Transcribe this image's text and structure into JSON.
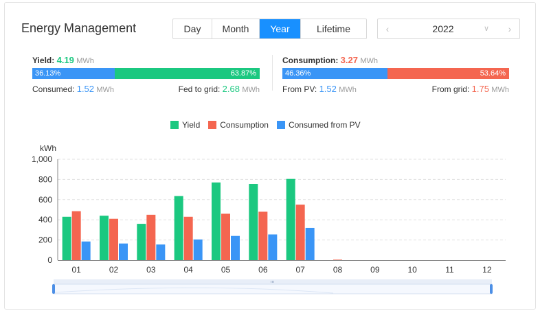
{
  "header": {
    "title": "Energy Management",
    "tabs": [
      {
        "label": "Day",
        "active": false
      },
      {
        "label": "Month",
        "active": false
      },
      {
        "label": "Year",
        "active": true
      },
      {
        "label": "Lifetime",
        "active": false
      }
    ],
    "year_picker": {
      "value": "2022",
      "prev_icon": "chevron-left-icon",
      "next_icon": "chevron-right-icon",
      "dropdown_icon": "chevron-down-icon"
    }
  },
  "yield_summary": {
    "label": "Yield:",
    "value": "4.19",
    "unit": "MWh",
    "bar_left_pct": "36.13%",
    "bar_right_pct": "63.87%",
    "bar_left_fraction": 0.3613,
    "consumed_label": "Consumed:",
    "consumed_value": "1.52",
    "consumed_unit": "MWh",
    "fed_label": "Fed to grid:",
    "fed_value": "2.68",
    "fed_unit": "MWh"
  },
  "consumption_summary": {
    "label": "Consumption:",
    "value": "3.27",
    "unit": "MWh",
    "bar_left_pct": "46.36%",
    "bar_right_pct": "53.64%",
    "bar_left_fraction": 0.4636,
    "pv_label": "From PV:",
    "pv_value": "1.52",
    "pv_unit": "MWh",
    "grid_label": "From grid:",
    "grid_value": "1.75",
    "grid_unit": "MWh"
  },
  "colors": {
    "yield": "#1bc880",
    "consumption": "#f46650",
    "consumed_pv": "#3a95f6",
    "accent": "#1890ff"
  },
  "chart_data": {
    "type": "bar",
    "ylabel": "kWh",
    "ylim": [
      0,
      1000
    ],
    "yticks": [
      "0",
      "200",
      "400",
      "600",
      "800",
      "1,000"
    ],
    "grid": true,
    "legend_position": "top-center",
    "categories": [
      "01",
      "02",
      "03",
      "04",
      "05",
      "06",
      "07",
      "08",
      "09",
      "10",
      "11",
      "12"
    ],
    "series": [
      {
        "name": "Yield",
        "values": [
          430,
          440,
          360,
          635,
          770,
          755,
          805,
          0,
          0,
          0,
          0,
          0
        ]
      },
      {
        "name": "Consumption",
        "values": [
          485,
          410,
          450,
          430,
          460,
          480,
          550,
          5,
          0,
          0,
          0,
          0
        ]
      },
      {
        "name": "Consumed from PV",
        "values": [
          185,
          165,
          155,
          205,
          240,
          255,
          320,
          0,
          0,
          0,
          0,
          0
        ]
      }
    ]
  }
}
